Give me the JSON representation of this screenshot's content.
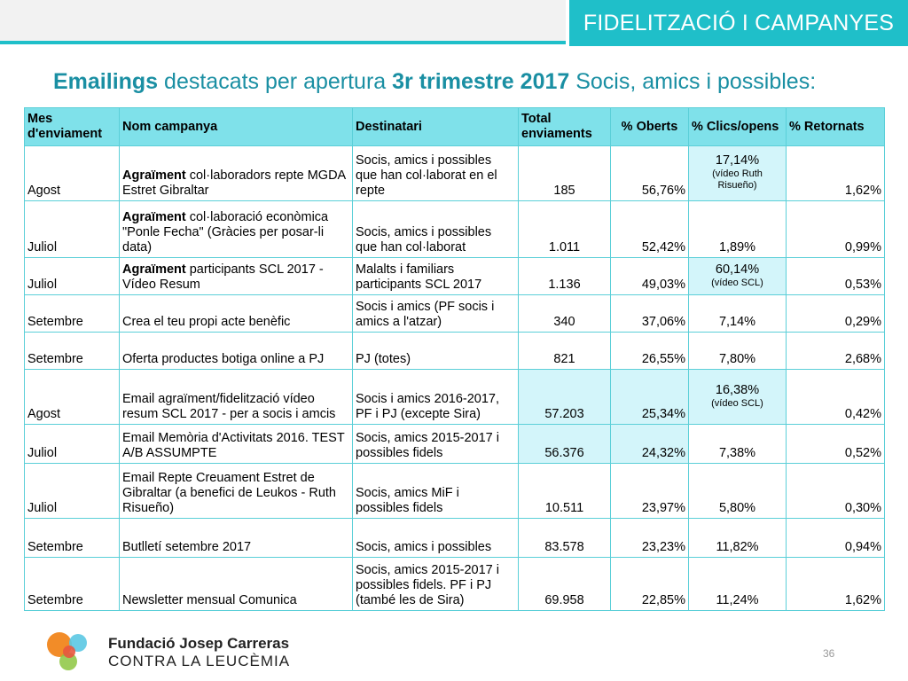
{
  "header": {
    "section_label": "FIDELITZACIÓ I CAMPANYES"
  },
  "title": {
    "bold_part": "Emailings",
    "part2": " destacats per apertura ",
    "bold_part2": "3r trimestre 2017",
    "part3": " Socis, amics i possibles:"
  },
  "table": {
    "columns": [
      "Mes d'enviament",
      "Nom campanya",
      "Destinatari",
      "Total enviaments",
      "% Oberts",
      "% Clics/opens",
      "% Retornats"
    ],
    "rows": [
      {
        "mes": "Agost",
        "nom_bold": "Agraïment",
        "nom_rest": " col·laboradors repte MGDA Estret Gibraltar",
        "dest": "Socis, amics i possibles que han col·laborat en el repte",
        "total": "185",
        "oberts": "56,76%",
        "clics": "17,14%",
        "clics_sub": "(vídeo Ruth Risueño)",
        "retornats": "1,62%",
        "hl": true
      },
      {
        "mes": "Juliol",
        "nom_bold": "Agraïment",
        "nom_rest": " col·laboració econòmica \"Ponle Fecha\" (Gràcies per posar-li data)",
        "dest": "Socis, amics i possibles que han col·laborat",
        "total": "1.011",
        "oberts": "52,42%",
        "clics": "1,89%",
        "clics_sub": "",
        "retornats": "0,99%",
        "hl": false
      },
      {
        "mes": "Juliol",
        "nom_bold": "Agraïment",
        "nom_rest": " participants SCL 2017 - Vídeo Resum",
        "dest": "Malalts i familiars participants SCL 2017",
        "total": "1.136",
        "oberts": "49,03%",
        "clics": "60,14%",
        "clics_sub": "(vídeo SCL)",
        "retornats": "0,53%",
        "hl": true
      },
      {
        "mes": "Setembre",
        "nom_bold": "",
        "nom_rest": "Crea el teu propi acte benèfic",
        "dest": "Socis i amics (PF socis i amics a l'atzar)",
        "total": "340",
        "oberts": "37,06%",
        "clics": "7,14%",
        "clics_sub": "",
        "retornats": "0,29%",
        "hl": false
      },
      {
        "mes": "Setembre",
        "nom_bold": "",
        "nom_rest": "Oferta productes botiga online a PJ",
        "dest": "PJ (totes)",
        "total": "821",
        "oberts": "26,55%",
        "clics": "7,80%",
        "clics_sub": "",
        "retornats": "2,68%",
        "hl": false
      },
      {
        "mes": "Agost",
        "nom_bold": "",
        "nom_rest": "Email agraïment/fidelització vídeo resum SCL 2017 - per a socis i amcis",
        "dest": "Socis i amics 2016-2017, PF i PJ (excepte Sira)",
        "total": "57.203",
        "oberts": "25,34%",
        "clics": "16,38%",
        "clics_sub": "(vídeo SCL)",
        "retornats": "0,42%",
        "hl": true,
        "hl_total": true
      },
      {
        "mes": "Juliol",
        "nom_bold": "",
        "nom_rest": "Email Memòria d'Activitats 2016. TEST A/B ASSUMPTE",
        "dest": "Socis, amics 2015-2017 i possibles fidels",
        "total": "56.376",
        "oberts": "24,32%",
        "clics": "7,38%",
        "clics_sub": "",
        "retornats": "0,52%",
        "hl": false,
        "hl_total": true
      },
      {
        "mes": "Juliol",
        "nom_bold": "",
        "nom_rest": "Email Repte Creuament Estret de Gibraltar (a benefici de Leukos - Ruth Risueño)",
        "dest": "Socis, amics MiF i possibles fidels",
        "total": "10.511",
        "oberts": "23,97%",
        "clics": "5,80%",
        "clics_sub": "",
        "retornats": "0,30%",
        "hl": false
      },
      {
        "mes": "Setembre",
        "nom_bold": "",
        "nom_rest": "Butlletí setembre 2017",
        "dest": "Socis, amics i possibles",
        "total": "83.578",
        "oberts": "23,23%",
        "clics": "11,82%",
        "clics_sub": "",
        "retornats": "0,94%",
        "hl": false
      },
      {
        "mes": "Setembre",
        "nom_bold": "",
        "nom_rest": "Newsletter mensual Comunica",
        "dest": "Socis, amics 2015-2017 i possibles fidels. PF i PJ (també les de Sira)",
        "total": "69.958",
        "oberts": "22,85%",
        "clics": "11,24%",
        "clics_sub": "",
        "retornats": "1,62%",
        "hl": false
      }
    ]
  },
  "footer": {
    "brand_line1": "Fundació Josep Carreras",
    "brand_line2": "CONTRA LA LEUCÈMIA",
    "page_number": "36"
  },
  "colors": {
    "accent": "#1fbfc9",
    "header_fill": "#7fe1ea",
    "highlight_fill": "#d3f5fa",
    "title": "#1a8fa3",
    "logo_orange": "#f28c28",
    "logo_red": "#e8573f",
    "logo_blue": "#5bc8e3",
    "logo_green": "#8cc63f"
  }
}
